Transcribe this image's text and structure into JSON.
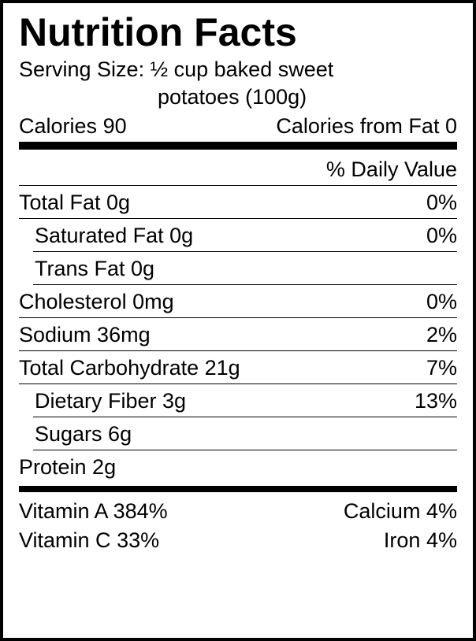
{
  "title": "Nutrition Facts",
  "serving": {
    "label": "Serving Size:",
    "value_line1": "½ cup baked sweet",
    "value_line2": "potatoes (100g)"
  },
  "calories": {
    "label": "Calories",
    "value": "90",
    "from_fat_label": "Calories from Fat",
    "from_fat_value": "0"
  },
  "dv_header": "% Daily Value",
  "nutrients": [
    {
      "name": "Total Fat",
      "amount": "0g",
      "dv": "0%",
      "indent": false
    },
    {
      "name": "Saturated Fat",
      "amount": "0g",
      "dv": "0%",
      "indent": true
    },
    {
      "name": "Trans Fat",
      "amount": "0g",
      "dv": "",
      "indent": true
    },
    {
      "name": "Cholesterol",
      "amount": "0mg",
      "dv": "0%",
      "indent": false
    },
    {
      "name": "Sodium",
      "amount": "36mg",
      "dv": "2%",
      "indent": false
    },
    {
      "name": "Total Carbohydrate",
      "amount": "21g",
      "dv": "7%",
      "indent": false
    },
    {
      "name": "Dietary Fiber",
      "amount": "3g",
      "dv": "13%",
      "indent": true
    },
    {
      "name": "Sugars",
      "amount": "6g",
      "dv": "",
      "indent": true
    },
    {
      "name": "Protein",
      "amount": "2g",
      "dv": "",
      "indent": false
    }
  ],
  "vitamins": {
    "left": [
      {
        "name": "Vitamin A",
        "value": "384%"
      },
      {
        "name": "Vitamin C",
        "value": "33%"
      }
    ],
    "right": [
      {
        "name": "Calcium",
        "value": "4%"
      },
      {
        "name": "Iron",
        "value": "4%"
      }
    ]
  },
  "colors": {
    "text": "#000000",
    "background": "#ffffff",
    "border": "#000000"
  }
}
